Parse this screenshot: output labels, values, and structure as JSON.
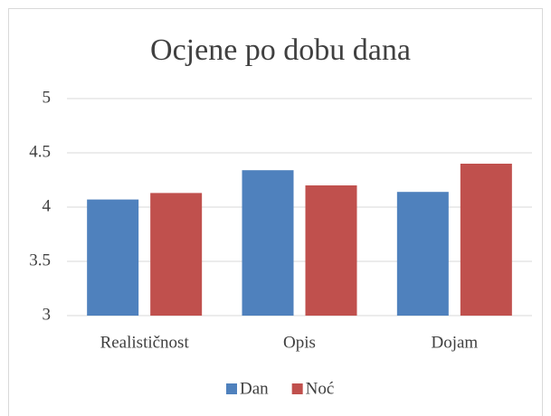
{
  "chart_data": {
    "type": "bar",
    "title": "Ocjene po dobu dana",
    "categories": [
      "Realističnost",
      "Opis",
      "Dojam"
    ],
    "series": [
      {
        "name": "Dan",
        "color": "#4f81bd",
        "values": [
          4.07,
          4.34,
          4.14
        ]
      },
      {
        "name": "Noć",
        "color": "#c0504d",
        "values": [
          4.13,
          4.2,
          4.4
        ]
      }
    ],
    "ylim": [
      3,
      5
    ],
    "yticks": [
      3,
      3.5,
      4,
      4.5,
      5
    ],
    "grid": true,
    "legend": "bottom"
  }
}
